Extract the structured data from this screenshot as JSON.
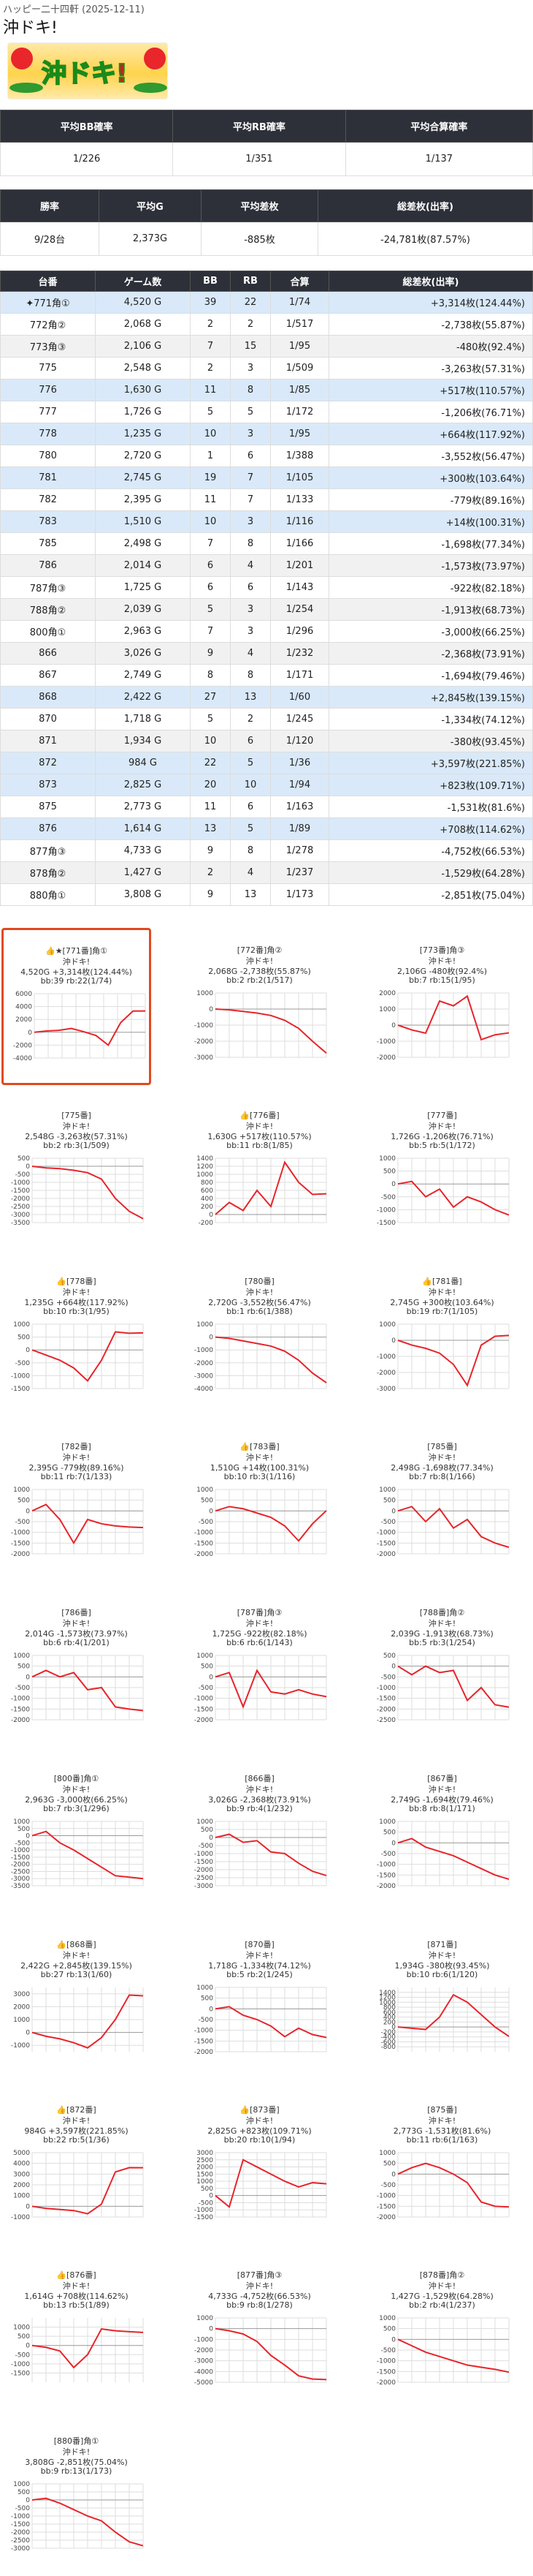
{
  "header": {
    "store_date": "ハッピー二十四軒 (2025-12-11)",
    "title": "沖ドキ!"
  },
  "summary1": {
    "headers": [
      "平均BB確率",
      "平均RB確率",
      "平均合算確率"
    ],
    "values": [
      "1/226",
      "1/351",
      "1/137"
    ]
  },
  "summary2": {
    "headers": [
      "勝率",
      "平均G",
      "平均差枚",
      "総差枚(出率)"
    ],
    "values": [
      "9/28台",
      "2,373G",
      "-885枚",
      "-24,781枚(87.57%)"
    ]
  },
  "table": {
    "headers": [
      "台番",
      "ゲーム数",
      "BB",
      "RB",
      "合算",
      "総差枚(出率)"
    ],
    "rows": [
      {
        "no": "✦771角①",
        "g": "4,520 G",
        "bb": "39",
        "rb": "22",
        "p": "1/74",
        "t": "+3,314枚(124.44%)",
        "win": true
      },
      {
        "no": "772角②",
        "g": "2,068 G",
        "bb": "2",
        "rb": "2",
        "p": "1/517",
        "t": "-2,738枚(55.87%)",
        "win": false
      },
      {
        "no": "773角③",
        "g": "2,106 G",
        "bb": "7",
        "rb": "15",
        "p": "1/95",
        "t": "-480枚(92.4%)",
        "win": false
      },
      {
        "no": "775",
        "g": "2,548 G",
        "bb": "2",
        "rb": "3",
        "p": "1/509",
        "t": "-3,263枚(57.31%)",
        "win": false
      },
      {
        "no": "776",
        "g": "1,630 G",
        "bb": "11",
        "rb": "8",
        "p": "1/85",
        "t": "+517枚(110.57%)",
        "win": true
      },
      {
        "no": "777",
        "g": "1,726 G",
        "bb": "5",
        "rb": "5",
        "p": "1/172",
        "t": "-1,206枚(76.71%)",
        "win": false
      },
      {
        "no": "778",
        "g": "1,235 G",
        "bb": "10",
        "rb": "3",
        "p": "1/95",
        "t": "+664枚(117.92%)",
        "win": true
      },
      {
        "no": "780",
        "g": "2,720 G",
        "bb": "1",
        "rb": "6",
        "p": "1/388",
        "t": "-3,552枚(56.47%)",
        "win": false
      },
      {
        "no": "781",
        "g": "2,745 G",
        "bb": "19",
        "rb": "7",
        "p": "1/105",
        "t": "+300枚(103.64%)",
        "win": true
      },
      {
        "no": "782",
        "g": "2,395 G",
        "bb": "11",
        "rb": "7",
        "p": "1/133",
        "t": "-779枚(89.16%)",
        "win": false
      },
      {
        "no": "783",
        "g": "1,510 G",
        "bb": "10",
        "rb": "3",
        "p": "1/116",
        "t": "+14枚(100.31%)",
        "win": true
      },
      {
        "no": "785",
        "g": "2,498 G",
        "bb": "7",
        "rb": "8",
        "p": "1/166",
        "t": "-1,698枚(77.34%)",
        "win": false
      },
      {
        "no": "786",
        "g": "2,014 G",
        "bb": "6",
        "rb": "4",
        "p": "1/201",
        "t": "-1,573枚(73.97%)",
        "win": false
      },
      {
        "no": "787角③",
        "g": "1,725 G",
        "bb": "6",
        "rb": "6",
        "p": "1/143",
        "t": "-922枚(82.18%)",
        "win": false
      },
      {
        "no": "788角②",
        "g": "2,039 G",
        "bb": "5",
        "rb": "3",
        "p": "1/254",
        "t": "-1,913枚(68.73%)",
        "win": false
      },
      {
        "no": "800角①",
        "g": "2,963 G",
        "bb": "7",
        "rb": "3",
        "p": "1/296",
        "t": "-3,000枚(66.25%)",
        "win": false
      },
      {
        "no": "866",
        "g": "3,026 G",
        "bb": "9",
        "rb": "4",
        "p": "1/232",
        "t": "-2,368枚(73.91%)",
        "win": false
      },
      {
        "no": "867",
        "g": "2,749 G",
        "bb": "8",
        "rb": "8",
        "p": "1/171",
        "t": "-1,694枚(79.46%)",
        "win": false
      },
      {
        "no": "868",
        "g": "2,422 G",
        "bb": "27",
        "rb": "13",
        "p": "1/60",
        "t": "+2,845枚(139.15%)",
        "win": true
      },
      {
        "no": "870",
        "g": "1,718 G",
        "bb": "5",
        "rb": "2",
        "p": "1/245",
        "t": "-1,334枚(74.12%)",
        "win": false
      },
      {
        "no": "871",
        "g": "1,934 G",
        "bb": "10",
        "rb": "6",
        "p": "1/120",
        "t": "-380枚(93.45%)",
        "win": false
      },
      {
        "no": "872",
        "g": "984 G",
        "bb": "22",
        "rb": "5",
        "p": "1/36",
        "t": "+3,597枚(221.85%)",
        "win": true
      },
      {
        "no": "873",
        "g": "2,825 G",
        "bb": "20",
        "rb": "10",
        "p": "1/94",
        "t": "+823枚(109.71%)",
        "win": true
      },
      {
        "no": "875",
        "g": "2,773 G",
        "bb": "11",
        "rb": "6",
        "p": "1/163",
        "t": "-1,531枚(81.6%)",
        "win": false
      },
      {
        "no": "876",
        "g": "1,614 G",
        "bb": "13",
        "rb": "5",
        "p": "1/89",
        "t": "+708枚(114.62%)",
        "win": true
      },
      {
        "no": "877角③",
        "g": "4,733 G",
        "bb": "9",
        "rb": "8",
        "p": "1/278",
        "t": "-4,752枚(66.53%)",
        "win": false
      },
      {
        "no": "878角②",
        "g": "1,427 G",
        "bb": "2",
        "rb": "4",
        "p": "1/237",
        "t": "-1,529枚(64.28%)",
        "win": false
      },
      {
        "no": "880角①",
        "g": "3,808 G",
        "bb": "9",
        "rb": "13",
        "p": "1/173",
        "t": "-2,851枚(75.04%)",
        "win": false
      }
    ]
  },
  "cards": [
    {
      "l1": "★[771番]角①",
      "crown": "👍",
      "l2": "沖ドキ!",
      "l3": "4,520G +3,314枚(124.44%)",
      "l4": "bb:39 rb:22(1/74)",
      "sel": true
    },
    {
      "l1": "[772番]角②",
      "crown": "",
      "l2": "沖ドキ!",
      "l3": "2,068G -2,738枚(55.87%)",
      "l4": "bb:2 rb:2(1/517)"
    },
    {
      "l1": "[773番]角③",
      "crown": "",
      "l2": "沖ドキ!",
      "l3": "2,106G -480枚(92.4%)",
      "l4": "bb:7 rb:15(1/95)"
    },
    {
      "l1": "[775番]",
      "crown": "",
      "l2": "沖ドキ!",
      "l3": "2,548G -3,263枚(57.31%)",
      "l4": "bb:2 rb:3(1/509)"
    },
    {
      "l1": "[776番]",
      "crown": "👍",
      "l2": "沖ドキ!",
      "l3": "1,630G +517枚(110.57%)",
      "l4": "bb:11 rb:8(1/85)"
    },
    {
      "l1": "[777番]",
      "crown": "",
      "l2": "沖ドキ!",
      "l3": "1,726G -1,206枚(76.71%)",
      "l4": "bb:5 rb:5(1/172)"
    },
    {
      "l1": "[778番]",
      "crown": "👍",
      "l2": "沖ドキ!",
      "l3": "1,235G +664枚(117.92%)",
      "l4": "bb:10 rb:3(1/95)"
    },
    {
      "l1": "[780番]",
      "crown": "",
      "l2": "沖ドキ!",
      "l3": "2,720G -3,552枚(56.47%)",
      "l4": "bb:1 rb:6(1/388)"
    },
    {
      "l1": "[781番]",
      "crown": "👍",
      "l2": "沖ドキ!",
      "l3": "2,745G +300枚(103.64%)",
      "l4": "bb:19 rb:7(1/105)"
    },
    {
      "l1": "[782番]",
      "crown": "",
      "l2": "沖ドキ!",
      "l3": "2,395G -779枚(89.16%)",
      "l4": "bb:11 rb:7(1/133)"
    },
    {
      "l1": "[783番]",
      "crown": "👍",
      "l2": "沖ドキ!",
      "l3": "1,510G +14枚(100.31%)",
      "l4": "bb:10 rb:3(1/116)"
    },
    {
      "l1": "[785番]",
      "crown": "",
      "l2": "沖ドキ!",
      "l3": "2,498G -1,698枚(77.34%)",
      "l4": "bb:7 rb:8(1/166)"
    },
    {
      "l1": "[786番]",
      "crown": "",
      "l2": "沖ドキ!",
      "l3": "2,014G -1,573枚(73.97%)",
      "l4": "bb:6 rb:4(1/201)"
    },
    {
      "l1": "[787番]角③",
      "crown": "",
      "l2": "沖ドキ!",
      "l3": "1,725G -922枚(82.18%)",
      "l4": "bb:6 rb:6(1/143)"
    },
    {
      "l1": "[788番]角②",
      "crown": "",
      "l2": "沖ドキ!",
      "l3": "2,039G -1,913枚(68.73%)",
      "l4": "bb:5 rb:3(1/254)"
    },
    {
      "l1": "[800番]角①",
      "crown": "",
      "l2": "沖ドキ!",
      "l3": "2,963G -3,000枚(66.25%)",
      "l4": "bb:7 rb:3(1/296)"
    },
    {
      "l1": "[866番]",
      "crown": "",
      "l2": "沖ドキ!",
      "l3": "3,026G -2,368枚(73.91%)",
      "l4": "bb:9 rb:4(1/232)"
    },
    {
      "l1": "[867番]",
      "crown": "",
      "l2": "沖ドキ!",
      "l3": "2,749G -1,694枚(79.46%)",
      "l4": "bb:8 rb:8(1/171)"
    },
    {
      "l1": "[868番]",
      "crown": "👍",
      "l2": "沖ドキ!",
      "l3": "2,422G +2,845枚(139.15%)",
      "l4": "bb:27 rb:13(1/60)"
    },
    {
      "l1": "[870番]",
      "crown": "",
      "l2": "沖ドキ!",
      "l3": "1,718G -1,334枚(74.12%)",
      "l4": "bb:5 rb:2(1/245)"
    },
    {
      "l1": "[871番]",
      "crown": "",
      "l2": "沖ドキ!",
      "l3": "1,934G -380枚(93.45%)",
      "l4": "bb:10 rb:6(1/120)"
    },
    {
      "l1": "[872番]",
      "crown": "👍",
      "l2": "沖ドキ!",
      "l3": "984G +3,597枚(221.85%)",
      "l4": "bb:22 rb:5(1/36)"
    },
    {
      "l1": "[873番]",
      "crown": "👍",
      "l2": "沖ドキ!",
      "l3": "2,825G +823枚(109.71%)",
      "l4": "bb:20 rb:10(1/94)"
    },
    {
      "l1": "[875番]",
      "crown": "",
      "l2": "沖ドキ!",
      "l3": "2,773G -1,531枚(81.6%)",
      "l4": "bb:11 rb:6(1/163)"
    },
    {
      "l1": "[876番]",
      "crown": "👍",
      "l2": "沖ドキ!",
      "l3": "1,614G +708枚(114.62%)",
      "l4": "bb:13 rb:5(1/89)"
    },
    {
      "l1": "[877番]角③",
      "crown": "",
      "l2": "沖ドキ!",
      "l3": "4,733G -4,752枚(66.53%)",
      "l4": "bb:9 rb:8(1/278)"
    },
    {
      "l1": "[878番]角②",
      "crown": "",
      "l2": "沖ドキ!",
      "l3": "1,427G -1,529枚(64.28%)",
      "l4": "bb:2 rb:4(1/237)"
    },
    {
      "l1": "[880番]角①",
      "crown": "",
      "l2": "沖ドキ!",
      "l3": "3,808G -2,851枚(75.04%)",
      "l4": "bb:9 rb:13(1/173)"
    }
  ],
  "chart_data": [
    {
      "type": "line",
      "ylim": [
        -4000,
        6000
      ],
      "yticks": [
        6000,
        4000,
        2000,
        0,
        -2000,
        -4000
      ],
      "values": [
        0,
        200,
        300,
        600,
        100,
        -500,
        -2000,
        1500,
        3300,
        3314
      ]
    },
    {
      "type": "line",
      "ylim": [
        -3000,
        1000
      ],
      "yticks": [
        1000,
        0,
        -1000,
        -2000,
        -3000
      ],
      "values": [
        0,
        -50,
        -150,
        -250,
        -400,
        -700,
        -1200,
        -2000,
        -2738
      ]
    },
    {
      "type": "line",
      "ylim": [
        -2000,
        2000
      ],
      "yticks": [
        2000,
        1000,
        0,
        -1000,
        -2000
      ],
      "values": [
        0,
        -300,
        -500,
        1500,
        1200,
        1800,
        -900,
        -600,
        -480
      ]
    },
    {
      "type": "line",
      "ylim": [
        -3500,
        500
      ],
      "yticks": [
        500,
        0,
        -500,
        -1000,
        -1500,
        -2000,
        -2500,
        -3000,
        -3500
      ],
      "values": [
        0,
        -100,
        -150,
        -250,
        -400,
        -800,
        -2000,
        -2800,
        -3263
      ]
    },
    {
      "type": "line",
      "ylim": [
        -200,
        1400
      ],
      "yticks": [
        1400,
        1200,
        1000,
        800,
        600,
        400,
        200,
        0,
        -200
      ],
      "values": [
        0,
        300,
        100,
        600,
        200,
        1300,
        800,
        500,
        517
      ]
    },
    {
      "type": "line",
      "ylim": [
        -1500,
        1000
      ],
      "yticks": [
        1000,
        500,
        0,
        -500,
        -1000,
        -1500
      ],
      "values": [
        0,
        100,
        -500,
        -200,
        -900,
        -500,
        -700,
        -1000,
        -1206
      ]
    },
    {
      "type": "line",
      "ylim": [
        -1500,
        1000
      ],
      "yticks": [
        1000,
        500,
        0,
        -500,
        -1000,
        -1500
      ],
      "values": [
        0,
        -200,
        -400,
        -700,
        -1200,
        -400,
        700,
        650,
        664
      ]
    },
    {
      "type": "line",
      "ylim": [
        -4000,
        1000
      ],
      "yticks": [
        1000,
        0,
        -1000,
        -2000,
        -3000,
        -4000
      ],
      "values": [
        0,
        -100,
        -300,
        -500,
        -700,
        -1100,
        -1800,
        -2800,
        -3552
      ]
    },
    {
      "type": "line",
      "ylim": [
        -3000,
        1000
      ],
      "yticks": [
        1000,
        0,
        -1000,
        -2000,
        -3000
      ],
      "values": [
        0,
        -300,
        -500,
        -800,
        -1500,
        -2800,
        -300,
        250,
        300
      ]
    },
    {
      "type": "line",
      "ylim": [
        -2000,
        1000
      ],
      "yticks": [
        1000,
        500,
        0,
        -500,
        -1000,
        -1500,
        -2000
      ],
      "values": [
        0,
        300,
        -400,
        -1500,
        -400,
        -600,
        -700,
        -750,
        -779
      ]
    },
    {
      "type": "line",
      "ylim": [
        -2000,
        1000
      ],
      "yticks": [
        1000,
        500,
        0,
        -500,
        -1000,
        -1500,
        -2000
      ],
      "values": [
        0,
        200,
        100,
        -100,
        -300,
        -700,
        -1400,
        -600,
        14
      ]
    },
    {
      "type": "line",
      "ylim": [
        -2000,
        1000
      ],
      "yticks": [
        1000,
        500,
        0,
        -500,
        -1000,
        -1500,
        -2000
      ],
      "values": [
        0,
        200,
        -500,
        100,
        -800,
        -400,
        -1200,
        -1500,
        -1698
      ]
    },
    {
      "type": "line",
      "ylim": [
        -2000,
        1000
      ],
      "yticks": [
        1000,
        500,
        0,
        -500,
        -1000,
        -1500,
        -2000
      ],
      "values": [
        0,
        300,
        0,
        200,
        -600,
        -500,
        -1400,
        -1500,
        -1573
      ]
    },
    {
      "type": "line",
      "ylim": [
        -2000,
        1000
      ],
      "yticks": [
        1000,
        500,
        0,
        -500,
        -1000,
        -1500,
        -2000
      ],
      "values": [
        0,
        200,
        -1400,
        300,
        -700,
        -800,
        -600,
        -800,
        -922
      ]
    },
    {
      "type": "line",
      "ylim": [
        -2500,
        500
      ],
      "yticks": [
        500,
        0,
        -500,
        -1000,
        -1500,
        -2000,
        -2500
      ],
      "values": [
        0,
        -400,
        0,
        -300,
        -200,
        -1600,
        -1000,
        -1800,
        -1913
      ]
    },
    {
      "type": "line",
      "ylim": [
        -3500,
        1000
      ],
      "yticks": [
        1000,
        500,
        0,
        -500,
        -1000,
        -1500,
        -2000,
        -2500,
        -3000,
        -3500
      ],
      "values": [
        0,
        300,
        -500,
        -1000,
        -1600,
        -2200,
        -2800,
        -2900,
        -3000
      ]
    },
    {
      "type": "line",
      "ylim": [
        -3000,
        1000
      ],
      "yticks": [
        1000,
        500,
        0,
        -500,
        -1000,
        -1500,
        -2000,
        -2500,
        -3000
      ],
      "values": [
        0,
        200,
        -300,
        -200,
        -900,
        -1000,
        -1600,
        -2100,
        -2368
      ]
    },
    {
      "type": "line",
      "ylim": [
        -2000,
        1000
      ],
      "yticks": [
        1000,
        500,
        0,
        -500,
        -1000,
        -1500,
        -2000
      ],
      "values": [
        0,
        200,
        -200,
        -400,
        -600,
        -900,
        -1200,
        -1500,
        -1694
      ]
    },
    {
      "type": "line",
      "ylim": [
        -1500,
        3500
      ],
      "yticks": [
        3000,
        2000,
        1000,
        0,
        -1000
      ],
      "values": [
        0,
        -300,
        -500,
        -800,
        -1200,
        -400,
        1000,
        2900,
        2845
      ]
    },
    {
      "type": "line",
      "ylim": [
        -2000,
        1000
      ],
      "yticks": [
        1000,
        500,
        0,
        -500,
        -1000,
        -1500,
        -2000
      ],
      "values": [
        0,
        100,
        -300,
        -500,
        -800,
        -1300,
        -900,
        -1200,
        -1334
      ]
    },
    {
      "type": "line",
      "ylim": [
        -1000,
        1600
      ],
      "yticks": [
        1400,
        1200,
        1000,
        800,
        600,
        400,
        200,
        0,
        -200,
        -400,
        -600,
        -800
      ],
      "values": [
        0,
        -50,
        -100,
        400,
        1300,
        1000,
        500,
        0,
        -380
      ]
    },
    {
      "type": "line",
      "ylim": [
        -1000,
        5000
      ],
      "yticks": [
        5000,
        4000,
        3000,
        2000,
        1000,
        0,
        -1000
      ],
      "values": [
        0,
        -200,
        -300,
        -400,
        -700,
        200,
        3200,
        3600,
        3597
      ]
    },
    {
      "type": "line",
      "ylim": [
        -1500,
        3000
      ],
      "yticks": [
        3000,
        2500,
        2000,
        1500,
        1000,
        500,
        0,
        -500,
        -1000,
        -1500
      ],
      "values": [
        0,
        -800,
        2500,
        2000,
        1500,
        1000,
        600,
        900,
        823
      ]
    },
    {
      "type": "line",
      "ylim": [
        -2000,
        1000
      ],
      "yticks": [
        1000,
        500,
        0,
        -500,
        -1000,
        -1500,
        -2000
      ],
      "values": [
        0,
        300,
        500,
        300,
        0,
        -400,
        -1300,
        -1500,
        -1531
      ]
    },
    {
      "type": "line",
      "ylim": [
        -2000,
        1500
      ],
      "yticks": [
        1000,
        500,
        0,
        -500,
        -1000,
        -1500
      ],
      "values": [
        0,
        -100,
        -300,
        -1200,
        -500,
        900,
        800,
        750,
        708
      ]
    },
    {
      "type": "line",
      "ylim": [
        -5000,
        1000
      ],
      "yticks": [
        1000,
        0,
        -1000,
        -2000,
        -3000,
        -4000,
        -5000
      ],
      "values": [
        0,
        -200,
        -500,
        -1200,
        -2500,
        -3400,
        -4400,
        -4700,
        -4752
      ]
    },
    {
      "type": "line",
      "ylim": [
        -2000,
        1000
      ],
      "yticks": [
        1000,
        500,
        0,
        -500,
        -1000,
        -1500,
        -2000
      ],
      "values": [
        0,
        -300,
        -600,
        -800,
        -1000,
        -1200,
        -1300,
        -1400,
        -1529
      ]
    },
    {
      "type": "line",
      "ylim": [
        -3000,
        1000
      ],
      "yticks": [
        1000,
        500,
        0,
        -500,
        -1000,
        -1500,
        -2000,
        -2500,
        -3000
      ],
      "values": [
        0,
        100,
        -200,
        -600,
        -1000,
        -1300,
        -2000,
        -2600,
        -2851
      ]
    }
  ]
}
